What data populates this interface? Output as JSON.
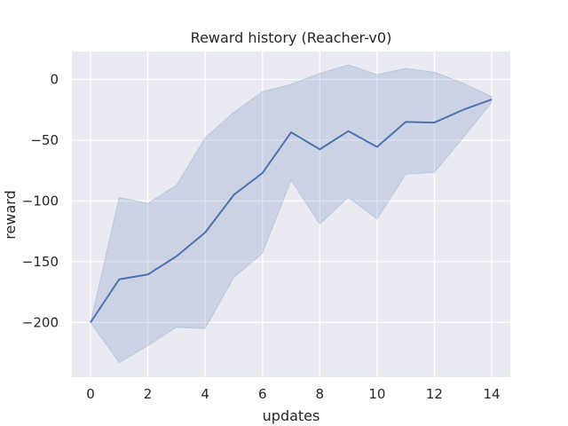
{
  "chart_data": {
    "type": "line",
    "title": "Reward history (Reacher-v0)",
    "xlabel": "updates",
    "ylabel": "reward",
    "xlim": [
      -0.65,
      14.65
    ],
    "ylim": [
      -245,
      23
    ],
    "x_ticks": [
      0,
      2,
      4,
      6,
      8,
      10,
      12,
      14
    ],
    "y_ticks": [
      0,
      -50,
      -100,
      -150,
      -200
    ],
    "y_tick_labels": [
      "0",
      "−50",
      "−100",
      "−150",
      "−200"
    ],
    "x": [
      0,
      1,
      2,
      3,
      4,
      5,
      6,
      7,
      8,
      9,
      10,
      11,
      12,
      13,
      14
    ],
    "series": [
      {
        "mean": [
          -200,
          -164.5,
          -160.5,
          -145.5,
          -126,
          -95,
          -77,
          -43.5,
          -57.5,
          -42.5,
          -55.5,
          -35,
          -35.5,
          -25,
          -16.5
        ],
        "upper": [
          -200,
          -97,
          -102,
          -87,
          -48,
          -27,
          -10,
          -4,
          5,
          12,
          4,
          9,
          6,
          -3,
          -14
        ],
        "lower": [
          -200,
          -233,
          -219,
          -204,
          -205,
          -163,
          -143,
          -83,
          -119,
          -97,
          -115,
          -78,
          -76.5,
          -48,
          -19
        ],
        "color": "#4c72b0",
        "band_color": "#4c72b0"
      }
    ],
    "grid": true,
    "background": "#eaeaf2",
    "grid_color": "#ffffff"
  }
}
